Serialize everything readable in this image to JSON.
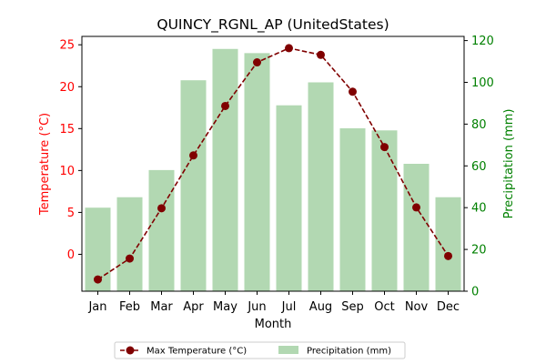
{
  "chart_data": {
    "type": "bar+line",
    "title": "QUINCY_RGNL_AP (UnitedStates)",
    "xlabel": "Month",
    "categories": [
      "Jan",
      "Feb",
      "Mar",
      "Apr",
      "May",
      "Jun",
      "Jul",
      "Aug",
      "Sep",
      "Oct",
      "Nov",
      "Dec"
    ],
    "series": [
      {
        "name": "Max Temperature (°C)",
        "type": "line",
        "axis": "left",
        "color": "#800000",
        "values": [
          -3.0,
          -0.5,
          5.5,
          11.8,
          17.7,
          22.9,
          24.6,
          23.8,
          19.4,
          12.8,
          5.6,
          -0.2
        ]
      },
      {
        "name": "Precipitation (mm)",
        "type": "bar",
        "axis": "right",
        "color": "#b2d8b2",
        "values": [
          40,
          45,
          58,
          101,
          116,
          114,
          89,
          100,
          78,
          77,
          61,
          45
        ]
      }
    ],
    "y_left": {
      "label": "Temperature (°C)",
      "color": "#ff0000",
      "ylim": [
        -4.4,
        26.0
      ],
      "ticks": [
        0,
        5,
        10,
        15,
        20,
        25
      ]
    },
    "y_right": {
      "label": "Precipitation (mm)",
      "color": "#008000",
      "ylim": [
        0,
        122
      ],
      "ticks": [
        0,
        20,
        40,
        60,
        80,
        100,
        120
      ]
    },
    "legend": {
      "placement": "bottom-center",
      "entries": [
        "Max Temperature (°C)",
        "Precipitation (mm)"
      ]
    },
    "grid": false
  }
}
